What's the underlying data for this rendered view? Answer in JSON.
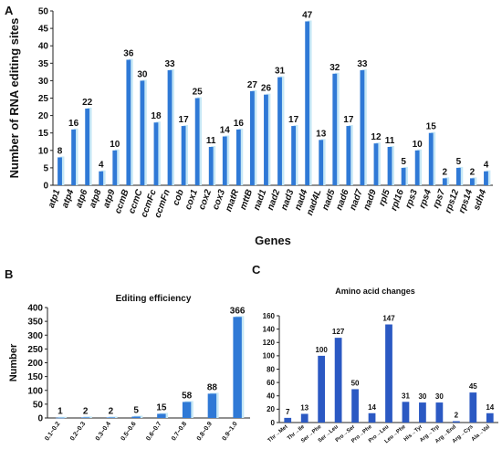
{
  "colors": {
    "bar": "#2f79d6",
    "bar_dark": "#2b59c3",
    "bar_light": "#c7e8f6",
    "axis": "#222222"
  },
  "panels": {
    "a": "A",
    "b": "B",
    "c": "C"
  },
  "chart_data": [
    {
      "id": "A",
      "type": "bar",
      "xlabel": "Genes",
      "ylabel": "Number of RNA editing sites",
      "ylim": [
        0,
        50
      ],
      "yticks": [
        0,
        5,
        10,
        15,
        20,
        25,
        30,
        35,
        40,
        45,
        50
      ],
      "categories": [
        "atp1",
        "atp4",
        "atp6",
        "atp8",
        "atp9",
        "ccmB",
        "ccmC",
        "ccmFc",
        "ccmFn",
        "cob",
        "cox1",
        "cox2",
        "cox3",
        "matR",
        "mttB",
        "nad1",
        "nad2",
        "nad3",
        "nad4",
        "nad4L",
        "nad5",
        "nad6",
        "nad7",
        "nad9",
        "rpl5",
        "rpl16",
        "rps3",
        "rps4",
        "rps7",
        "rps12",
        "rps14",
        "sdh4"
      ],
      "values": [
        8,
        16,
        22,
        4,
        10,
        36,
        30,
        18,
        33,
        17,
        25,
        11,
        14,
        16,
        27,
        26,
        31,
        17,
        47,
        13,
        32,
        17,
        33,
        12,
        11,
        5,
        10,
        15,
        2,
        5,
        2,
        4
      ]
    },
    {
      "id": "B",
      "type": "bar",
      "title": "Editing efficiency",
      "ylabel": "Number",
      "ylim": [
        0,
        400
      ],
      "yticks": [
        0,
        50,
        100,
        150,
        200,
        250,
        300,
        350,
        400
      ],
      "categories": [
        "0.1~0.2",
        "0.2~0.3",
        "0.3~0.4",
        "0.5~0.6",
        "0.6~0.7",
        "0.7~0.8",
        "0.8~0.9",
        "0.9~1.0"
      ],
      "values": [
        1,
        2,
        2,
        5,
        15,
        58,
        88,
        366
      ]
    },
    {
      "id": "C",
      "type": "bar",
      "title": "Amino acid changes",
      "ylim": [
        0,
        160
      ],
      "yticks": [
        0,
        20,
        40,
        60,
        80,
        100,
        120,
        140,
        160
      ],
      "categories": [
        "Thr→Met",
        "Thr→Ile",
        "Ser→Phe",
        "Ser→Leu",
        "Pro→Ser",
        "Pro→Phe",
        "Pro→Leu",
        "Leu→Phe",
        "His→Tyr",
        "Arg→Trp",
        "Arg→End",
        "Arg→Cys",
        "Ala→Val"
      ],
      "values": [
        7,
        13,
        100,
        127,
        50,
        14,
        147,
        31,
        30,
        30,
        2,
        45,
        14
      ]
    }
  ]
}
